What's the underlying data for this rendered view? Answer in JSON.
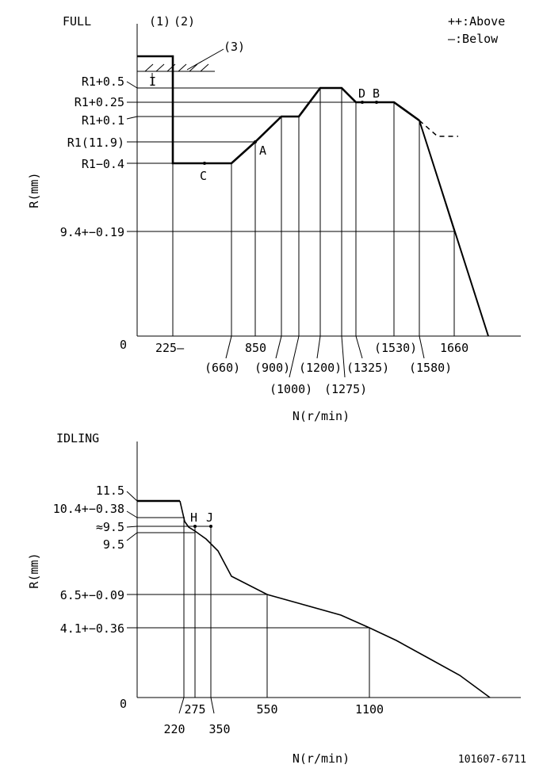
{
  "full": {
    "title": "FULL",
    "legend": {
      "above": "++:Above",
      "below": "—:Below"
    },
    "refs": {
      "r1": "(1)",
      "r2": "(2)",
      "r3": "(3)"
    },
    "y_axis_label": "R(mm)",
    "x_axis_label": "N(r/min)",
    "y_ticks": [
      "R1+0.5",
      "R1+0.25",
      "R1+0.1",
      "R1(11.9)",
      "R1−0.4",
      "9.4+−0.19",
      "0"
    ],
    "x_ticks_top": [
      "225—",
      "850",
      "1660"
    ],
    "x_ticks_mid": [
      "(660)",
      "(900)",
      "(1200)",
      "(1325)",
      "(1530)",
      "(1580)"
    ],
    "x_ticks_low": [
      "(1000)",
      "(1275)"
    ],
    "points": {
      "A": "A",
      "B": "B",
      "C": "C",
      "D": "D"
    },
    "marker_I": "I"
  },
  "idling": {
    "title": "IDLING",
    "y_axis_label": "R(mm)",
    "x_axis_label": "N(r/min)",
    "y_ticks": [
      "11.5",
      "10.4+−0.38",
      "≈9.5",
      "9.5",
      "6.5+−0.09",
      "4.1+−0.36",
      "0"
    ],
    "x_ticks": [
      "220",
      "275",
      "350",
      "550",
      "1100"
    ],
    "points": {
      "H": "H",
      "J": "J"
    }
  },
  "drawing_no": "101607-6711"
}
